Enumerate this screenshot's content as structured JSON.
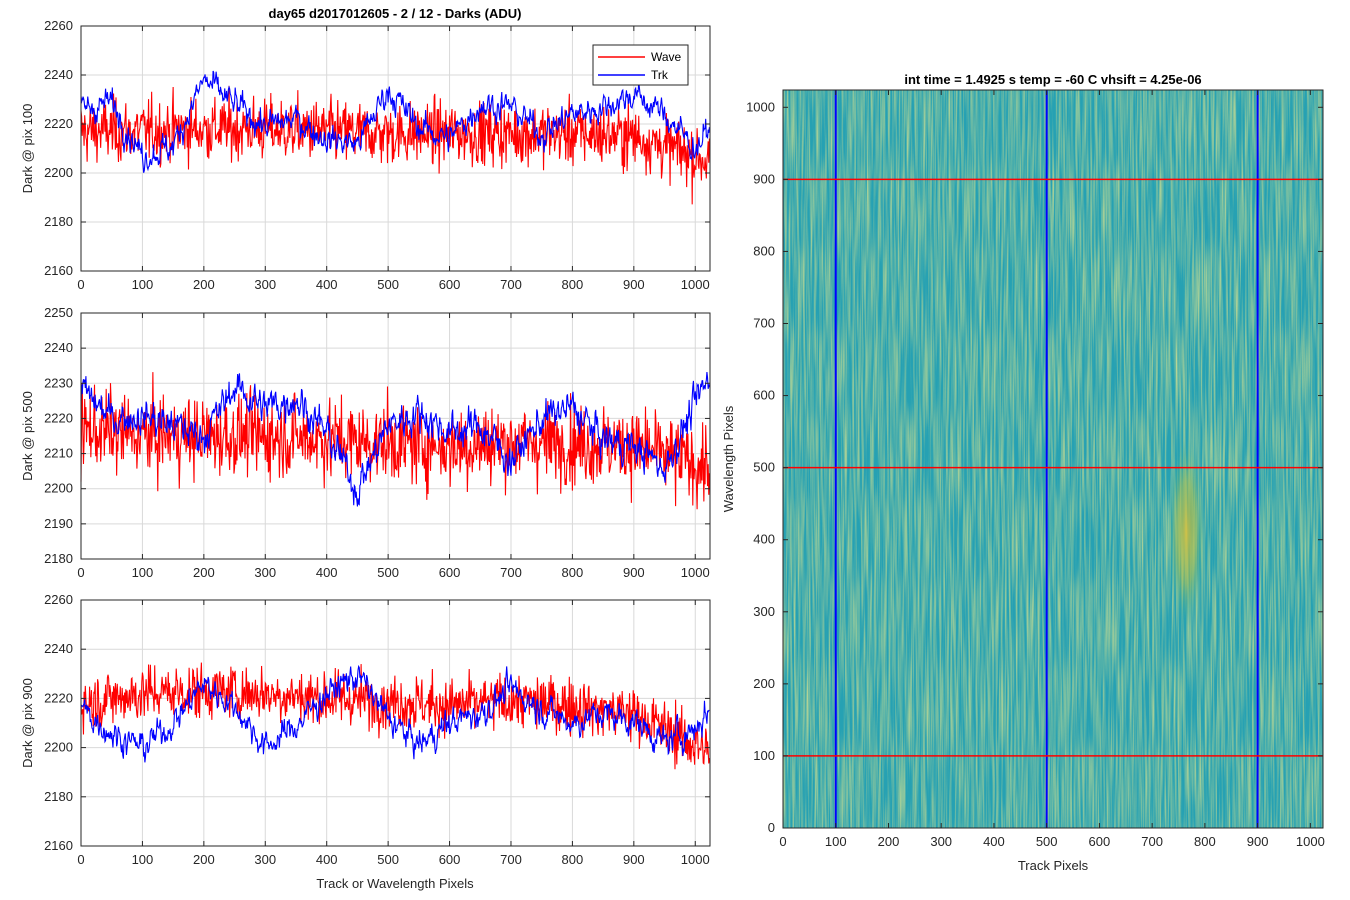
{
  "figure_title": "day65 d2017012605 - 2 / 12 - Darks (ADU)",
  "colors": {
    "wave": "#ff0000",
    "trk": "#0000ff",
    "heat_low": "#1f8fc4",
    "heat_mid": "#2bb0a5",
    "heat_high": "#c9c035"
  },
  "chart_data": [
    {
      "id": "dark-pix100",
      "type": "line",
      "title": "day65 d2017012605 - 2 / 12 - Darks (ADU)",
      "xlabel": "",
      "ylabel": "Dark @ pix 100",
      "xlim": [
        0,
        1024
      ],
      "ylim": [
        2160,
        2260
      ],
      "xticks": [
        0,
        100,
        200,
        300,
        400,
        500,
        600,
        700,
        800,
        900,
        1000
      ],
      "yticks": [
        2160,
        2180,
        2200,
        2220,
        2240,
        2260
      ],
      "grid": true,
      "legend": "top-right",
      "series": [
        {
          "name": "Wave",
          "color": "#ff0000",
          "mean": 2217,
          "noise": 9,
          "x": [
            0,
            100,
            200,
            300,
            400,
            500,
            600,
            700,
            800,
            900,
            1024
          ],
          "trend": [
            2217,
            2217,
            2218,
            2218,
            2217,
            2216,
            2216,
            2216,
            2216,
            2215,
            2205
          ]
        },
        {
          "name": "Trk",
          "color": "#0000ff",
          "noise": 3.5,
          "x": [
            0,
            50,
            100,
            150,
            200,
            250,
            300,
            350,
            400,
            450,
            500,
            550,
            600,
            650,
            700,
            750,
            800,
            850,
            900,
            950,
            1000,
            1024
          ],
          "trend": [
            2226,
            2229,
            2207,
            2211,
            2238,
            2228,
            2219,
            2222,
            2214,
            2212,
            2234,
            2219,
            2214,
            2228,
            2227,
            2216,
            2224,
            2227,
            2232,
            2224,
            2210,
            2218
          ]
        }
      ]
    },
    {
      "id": "dark-pix500",
      "type": "line",
      "title": "",
      "xlabel": "",
      "ylabel": "Dark @ pix 500",
      "xlim": [
        0,
        1024
      ],
      "ylim": [
        2180,
        2250
      ],
      "xticks": [
        0,
        100,
        200,
        300,
        400,
        500,
        600,
        700,
        800,
        900,
        1000
      ],
      "yticks": [
        2180,
        2190,
        2200,
        2210,
        2220,
        2230,
        2240,
        2250
      ],
      "grid": true,
      "series": [
        {
          "name": "Wave",
          "color": "#ff0000",
          "mean": 2214,
          "noise": 8,
          "x": [
            0,
            100,
            200,
            300,
            400,
            500,
            600,
            700,
            800,
            900,
            1024
          ],
          "trend": [
            2217,
            2215,
            2215,
            2215,
            2214,
            2213,
            2212,
            2213,
            2213,
            2212,
            2206
          ]
        },
        {
          "name": "Trk",
          "color": "#0000ff",
          "noise": 3,
          "x": [
            0,
            50,
            100,
            150,
            200,
            250,
            300,
            350,
            400,
            450,
            500,
            550,
            600,
            650,
            700,
            750,
            800,
            850,
            900,
            950,
            1000,
            1024
          ],
          "trend": [
            2228,
            2220,
            2221,
            2218,
            2215,
            2229,
            2223,
            2226,
            2216,
            2200,
            2218,
            2222,
            2216,
            2218,
            2208,
            2220,
            2223,
            2214,
            2212,
            2206,
            2224,
            2232
          ]
        }
      ]
    },
    {
      "id": "dark-pix900",
      "type": "line",
      "title": "",
      "xlabel": "Track or Wavelength Pixels",
      "ylabel": "Dark @ pix 900",
      "xlim": [
        0,
        1024
      ],
      "ylim": [
        2160,
        2260
      ],
      "xticks": [
        0,
        100,
        200,
        300,
        400,
        500,
        600,
        700,
        800,
        900,
        1000
      ],
      "yticks": [
        2160,
        2180,
        2200,
        2220,
        2240,
        2260
      ],
      "grid": true,
      "series": [
        {
          "name": "Wave",
          "color": "#ff0000",
          "mean": 2218,
          "noise": 8,
          "x": [
            0,
            100,
            200,
            300,
            400,
            500,
            600,
            700,
            800,
            900,
            1024
          ],
          "trend": [
            2218,
            2222,
            2223,
            2222,
            2220,
            2219,
            2217,
            2219,
            2217,
            2214,
            2198
          ]
        },
        {
          "name": "Trk",
          "color": "#0000ff",
          "noise": 3.5,
          "x": [
            0,
            50,
            100,
            150,
            200,
            250,
            300,
            350,
            400,
            450,
            500,
            550,
            600,
            650,
            700,
            750,
            800,
            850,
            900,
            950,
            1000,
            1024
          ],
          "trend": [
            2216,
            2206,
            2200,
            2210,
            2226,
            2217,
            2200,
            2209,
            2222,
            2230,
            2212,
            2201,
            2210,
            2214,
            2224,
            2216,
            2210,
            2214,
            2211,
            2202,
            2208,
            2216
          ]
        }
      ]
    },
    {
      "id": "dark-image",
      "type": "heatmap",
      "title": "int time = 1.4925 s    temp = -60 C    vhsift = 4.25e-06",
      "xlabel": "Track Pixels",
      "ylabel": "Wavelength Pixels",
      "xlim": [
        0,
        1024
      ],
      "ylim": [
        0,
        1024
      ],
      "xticks": [
        0,
        100,
        200,
        300,
        400,
        500,
        600,
        700,
        800,
        900,
        1000
      ],
      "yticks": [
        0,
        100,
        200,
        300,
        400,
        500,
        600,
        700,
        800,
        900,
        1000
      ],
      "vertical_lines": {
        "color": "#0000ff",
        "x": [
          100,
          500,
          900
        ]
      },
      "horizontal_lines": {
        "color": "#ff0000",
        "y": [
          100,
          500,
          900
        ]
      },
      "features": [
        {
          "shape": "blob",
          "x": 765,
          "y": 410,
          "x_halfwidth": 35,
          "y_halfwidth": 130,
          "level": "high"
        }
      ]
    }
  ]
}
